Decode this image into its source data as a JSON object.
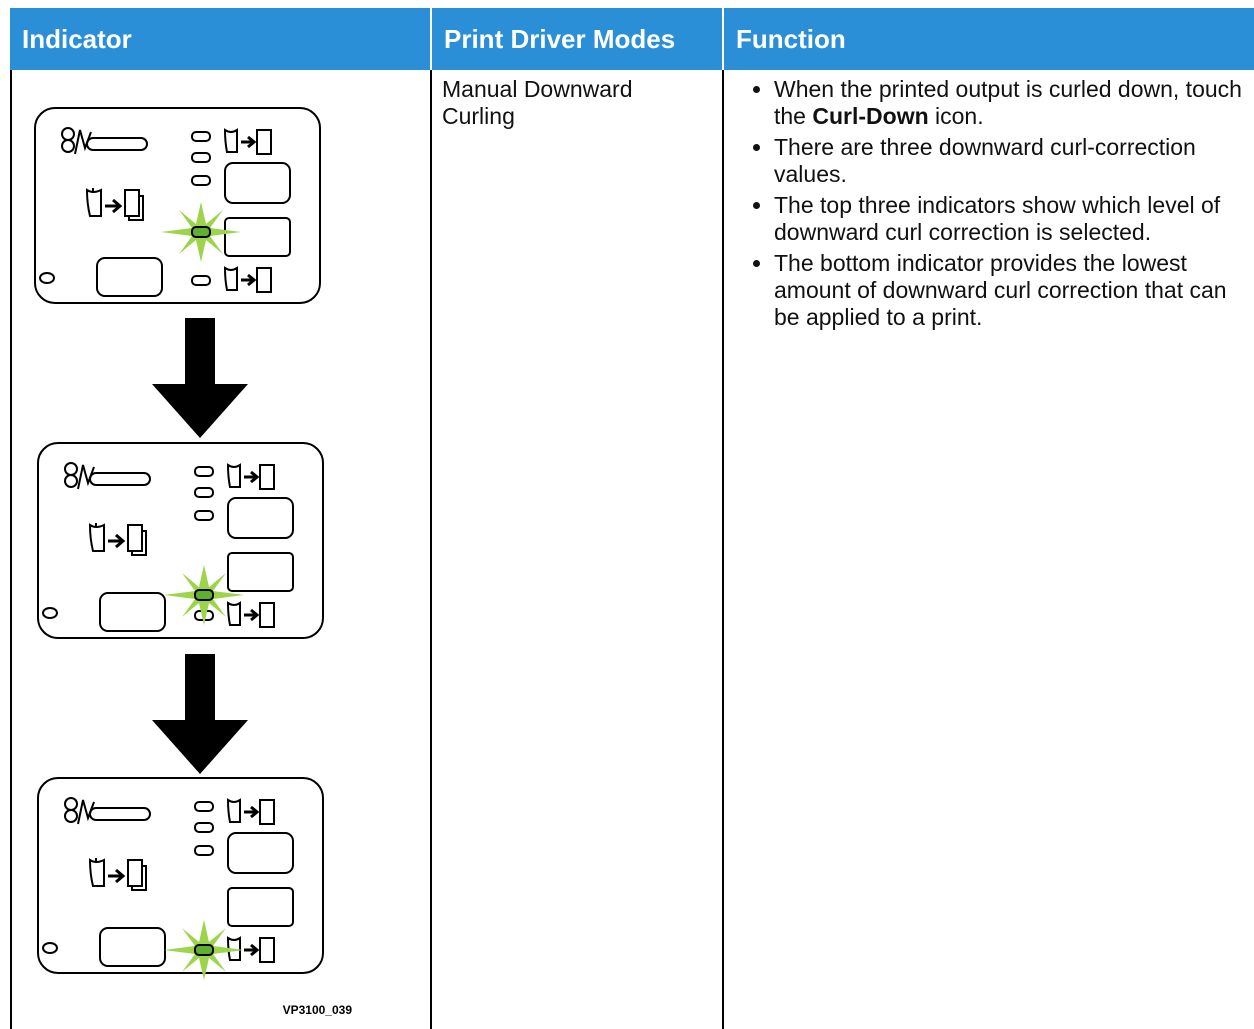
{
  "table": {
    "headers": [
      "Indicator",
      "Print Driver Modes",
      "Function"
    ],
    "rows": [
      {
        "indicator": {
          "figure_id": "VP3100_039"
        },
        "mode": "Manual Downward Curling",
        "function": [
          [
            {
              "text": "When the printed output is curled down, touch the "
            },
            {
              "text": "Curl-Down",
              "bold": true
            },
            {
              "text": " icon."
            }
          ],
          [
            {
              "text": "There are three downward curl-correction values."
            }
          ],
          [
            {
              "text": "The top three indicators show which level of downward curl correction is selected."
            }
          ],
          [
            {
              "text": "The bottom indicator provides the lowest amount of downward curl correction that can be applied to a print."
            }
          ]
        ]
      }
    ]
  }
}
